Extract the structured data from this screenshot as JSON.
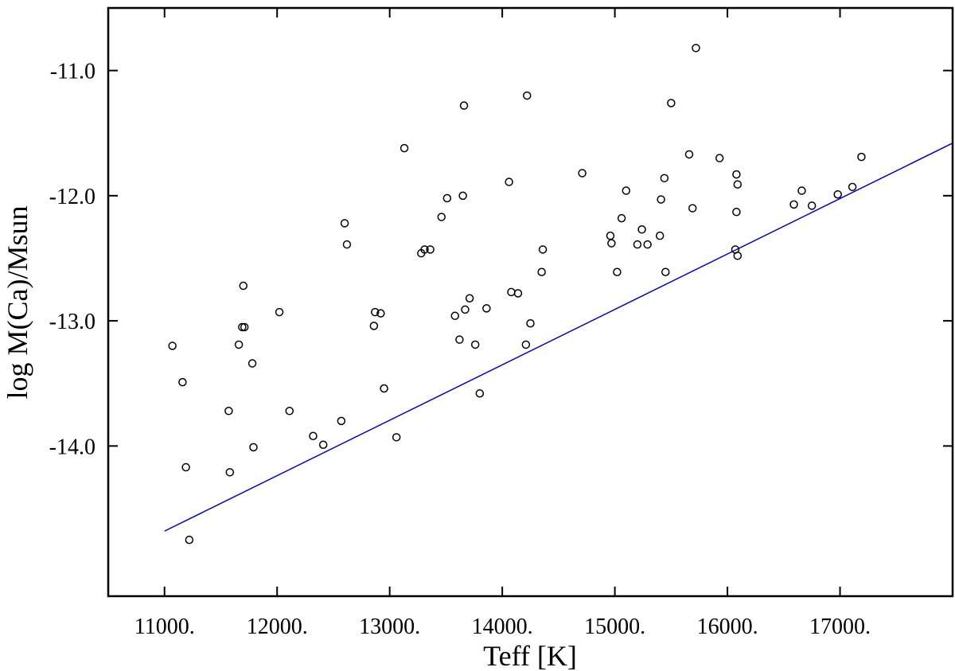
{
  "chart_data": {
    "type": "scatter",
    "xlabel": "Teff [K]",
    "ylabel": "log M(Ca)/Msun",
    "xlim": [
      10500,
      18000
    ],
    "ylim": [
      -15.2,
      -10.5
    ],
    "x_ticks": [
      11000,
      12000,
      13000,
      14000,
      15000,
      16000,
      17000
    ],
    "x_tick_labels": [
      "11000.",
      "12000.",
      "13000.",
      "14000.",
      "15000.",
      "16000.",
      "17000."
    ],
    "y_ticks": [
      -11.0,
      -12.0,
      -13.0,
      -14.0
    ],
    "y_tick_labels": [
      "-11.0",
      "-12.0",
      "-13.0",
      "-14.0"
    ],
    "grid": false,
    "line_color": "#0000cc",
    "marker_color": "#000000",
    "series": [
      {
        "type": "scatter",
        "x": [
          11070,
          11160,
          11190,
          11220,
          11570,
          11580,
          11660,
          11690,
          11700,
          11710,
          11780,
          11790,
          12020,
          12110,
          12320,
          12410,
          12570,
          12600,
          12620,
          12860,
          12870,
          12920,
          12950,
          13060,
          13130,
          13280,
          13310,
          13360,
          13460,
          13510,
          13580,
          13620,
          13650,
          13660,
          13670,
          13710,
          13760,
          13800,
          13860,
          14060,
          14080,
          14140,
          14210,
          14220,
          14250,
          14350,
          14360,
          14710,
          14960,
          14970,
          15020,
          15060,
          15100,
          15200,
          15240,
          15290,
          15400,
          15410,
          15440,
          15450,
          15500,
          15660,
          15690,
          15720,
          15930,
          16070,
          16080,
          16080,
          16090,
          16090,
          16590,
          16660,
          16750,
          16980,
          17110,
          17190
        ],
        "y": [
          -13.2,
          -13.49,
          -14.17,
          -14.75,
          -13.72,
          -14.21,
          -13.19,
          -13.05,
          -12.72,
          -13.05,
          -13.34,
          -14.01,
          -12.93,
          -13.72,
          -13.92,
          -13.99,
          -13.8,
          -12.22,
          -12.39,
          -13.04,
          -12.93,
          -12.94,
          -13.54,
          -13.93,
          -11.62,
          -12.46,
          -12.43,
          -12.43,
          -12.17,
          -12.02,
          -12.96,
          -13.15,
          -12.0,
          -11.28,
          -12.91,
          -12.82,
          -13.19,
          -13.58,
          -12.9,
          -11.89,
          -12.77,
          -12.78,
          -13.19,
          -11.2,
          -13.02,
          -12.61,
          -12.43,
          -11.82,
          -12.32,
          -12.38,
          -12.61,
          -12.18,
          -11.96,
          -12.39,
          -12.27,
          -12.39,
          -12.32,
          -12.03,
          -11.86,
          -12.61,
          -11.26,
          -11.67,
          -12.1,
          -10.82,
          -11.7,
          -12.43,
          -12.13,
          -11.83,
          -11.91,
          -12.48,
          -12.07,
          -11.96,
          -12.08,
          -11.99,
          -11.93,
          -11.69
        ]
      },
      {
        "type": "line",
        "x": [
          11000,
          18000
        ],
        "y": [
          -14.68,
          -11.58
        ]
      }
    ]
  }
}
